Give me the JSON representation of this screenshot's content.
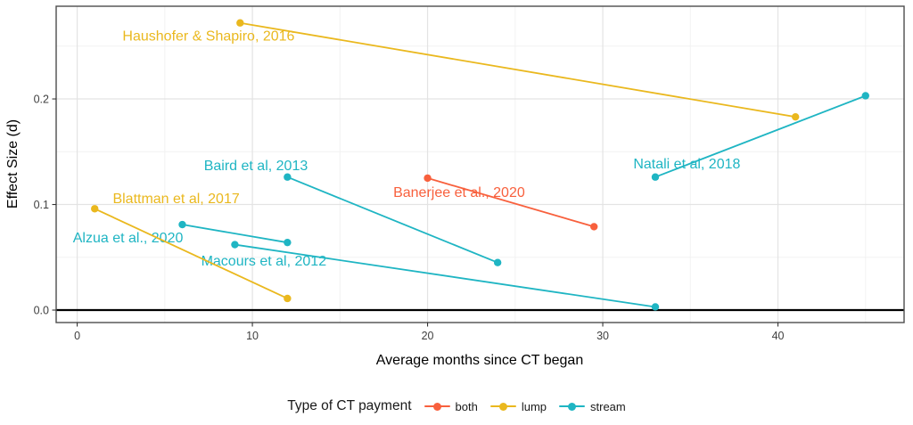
{
  "chart_data": {
    "type": "line",
    "title": "",
    "xlabel": "Average months since CT began",
    "ylabel": "Effect Size (d)",
    "xlim": [
      -1.2,
      47.2
    ],
    "ylim": [
      -0.0118,
      0.2878
    ],
    "x_ticks_major": [
      0,
      10,
      20,
      30,
      40
    ],
    "x_ticks_minor": [
      5,
      15,
      25,
      35,
      45
    ],
    "y_ticks_major": [
      0,
      0.1,
      0.2
    ],
    "y_tick_labels": [
      "0.0",
      "0.1",
      "0.2"
    ],
    "y_ticks_minor": [
      0.05,
      0.15,
      0.25
    ],
    "hline_y": 0,
    "grid": true,
    "legend_position": "bottom",
    "legend_title": "Type of CT payment",
    "groups": [
      {
        "name": "both",
        "color": "#F8603D"
      },
      {
        "name": "lump",
        "color": "#EAB81E"
      },
      {
        "name": "stream",
        "color": "#1FB5C3"
      }
    ],
    "series": [
      {
        "study": "Haushofer & Shapiro, 2016",
        "group": "lump",
        "points": [
          [
            9.3,
            0.272
          ],
          [
            41,
            0.183
          ]
        ],
        "label_at": [
          7.5,
          0.26
        ]
      },
      {
        "study": "Blattman et al, 2017",
        "group": "lump",
        "points": [
          [
            1,
            0.096
          ],
          [
            12,
            0.011
          ]
        ],
        "label_at": [
          5.65,
          0.106
        ]
      },
      {
        "study": "Banerjee et al., 2020",
        "group": "both",
        "points": [
          [
            20,
            0.125
          ],
          [
            29.5,
            0.079
          ]
        ],
        "label_at": [
          21.8,
          0.112
        ]
      },
      {
        "study": "Baird et al, 2013",
        "group": "stream",
        "points": [
          [
            12,
            0.126
          ],
          [
            24,
            0.045
          ]
        ],
        "label_at": [
          10.2,
          0.137
        ]
      },
      {
        "study": "Alzua et al., 2020",
        "group": "stream",
        "points": [
          [
            6,
            0.081
          ],
          [
            12,
            0.064
          ]
        ],
        "label_at": [
          2.9,
          0.069
        ]
      },
      {
        "study": "Macours et al, 2012",
        "group": "stream",
        "points": [
          [
            9,
            0.062
          ],
          [
            33,
            0.003
          ]
        ],
        "label_at": [
          10.65,
          0.047
        ]
      },
      {
        "study": "Natali et al, 2018",
        "group": "stream",
        "points": [
          [
            33,
            0.126
          ],
          [
            45,
            0.203
          ]
        ],
        "label_at": [
          34.8,
          0.139
        ]
      }
    ]
  }
}
